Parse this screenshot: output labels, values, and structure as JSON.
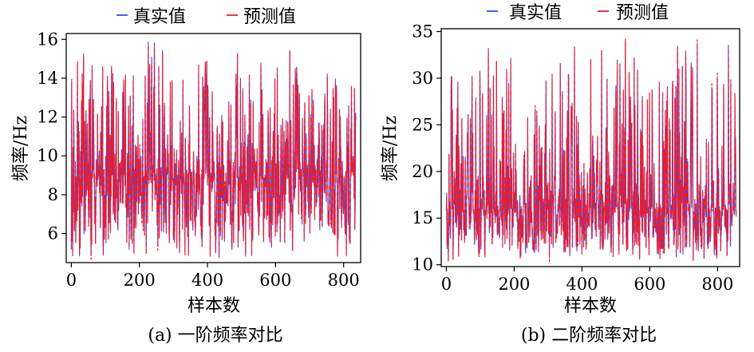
{
  "chart_data": [
    {
      "id": "a",
      "type": "line",
      "caption": "(a) 一阶频率对比",
      "xlabel": "样本数",
      "ylabel": "频率/Hz",
      "xlim": [
        -15,
        850
      ],
      "ylim": [
        4.5,
        16.3
      ],
      "xticks": [
        0,
        200,
        400,
        600,
        800
      ],
      "yticks": [
        6,
        8,
        10,
        12,
        14,
        16
      ],
      "n_samples": 837,
      "series_summary": {
        "min": 4.8,
        "max": 15.9,
        "mean": 9.0
      },
      "series": [
        {
          "name": "真实值",
          "color": "#3050f0",
          "style": "solid"
        },
        {
          "name": "预测值",
          "color": "#ee1c2c",
          "style": "dashed"
        }
      ]
    },
    {
      "id": "b",
      "type": "line",
      "caption": "(b) 二阶频率对比",
      "xlabel": "样本数",
      "ylabel": "频率/Hz",
      "xlim": [
        -15,
        865
      ],
      "ylim": [
        9.8,
        35.3
      ],
      "xticks": [
        0,
        200,
        400,
        600,
        800
      ],
      "yticks": [
        10,
        15,
        20,
        25,
        30,
        35
      ],
      "n_samples": 856,
      "series_summary": {
        "min": 10.5,
        "max": 33.9,
        "mean": 16.0
      },
      "series": [
        {
          "name": "真实值",
          "color": "#3050f0",
          "style": "solid"
        },
        {
          "name": "预测值",
          "color": "#ee1c2c",
          "style": "dashed"
        }
      ]
    }
  ]
}
